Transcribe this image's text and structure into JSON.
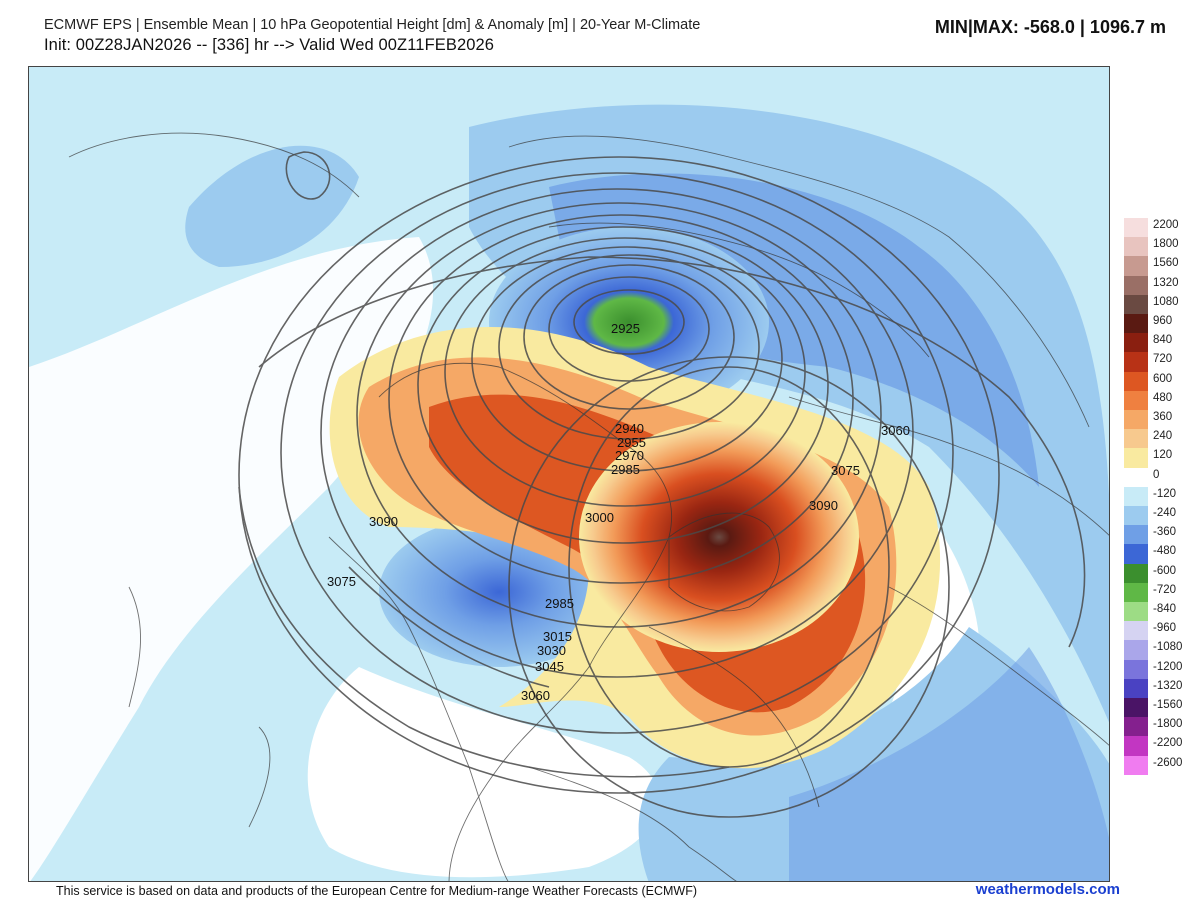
{
  "header": {
    "title": "ECMWF EPS | Ensemble Mean | 10 hPa Geopotential Height [dm] & Anomaly [m] | 20-Year M-Climate",
    "init": "Init: 00Z28JAN2026 -- [336] hr --> Valid Wed 00Z11FEB2026",
    "minmax": "MIN|MAX: -568.0 | 1096.7 m"
  },
  "map": {
    "contour_labels": [
      "2925",
      "2940",
      "2955",
      "2970",
      "2985",
      "3000",
      "3060",
      "3075",
      "3090",
      "3090",
      "3075",
      "2985",
      "3015",
      "3030",
      "3045",
      "3060"
    ]
  },
  "legend": {
    "entries": [
      {
        "label": "2200",
        "color": "#f6dede"
      },
      {
        "label": "1800",
        "color": "#e8c4bf"
      },
      {
        "label": "1560",
        "color": "#c79a90"
      },
      {
        "label": "1320",
        "color": "#9a6f66"
      },
      {
        "label": "1080",
        "color": "#6a4a42"
      },
      {
        "label": "960",
        "color": "#5a1a12"
      },
      {
        "label": "840",
        "color": "#8a1f10"
      },
      {
        "label": "720",
        "color": "#b83216"
      },
      {
        "label": "600",
        "color": "#dd5722"
      },
      {
        "label": "480",
        "color": "#ef8040"
      },
      {
        "label": "360",
        "color": "#f5a866"
      },
      {
        "label": "240",
        "color": "#f7c98e"
      },
      {
        "label": "120",
        "color": "#f9eaa0"
      },
      {
        "label": "0",
        "color": "#ffffff"
      },
      {
        "label": "-120",
        "color": "#c8ebf7"
      },
      {
        "label": "-240",
        "color": "#9ccbef"
      },
      {
        "label": "-360",
        "color": "#6f9fe6"
      },
      {
        "label": "-480",
        "color": "#3c67d6"
      },
      {
        "label": "-600",
        "color": "#3b8f2e"
      },
      {
        "label": "-720",
        "color": "#5fb846"
      },
      {
        "label": "-840",
        "color": "#9ddc85"
      },
      {
        "label": "-960",
        "color": "#d5d3f2"
      },
      {
        "label": "-1080",
        "color": "#aaa6ea"
      },
      {
        "label": "-1200",
        "color": "#7a74dc"
      },
      {
        "label": "-1320",
        "color": "#4a42c2"
      },
      {
        "label": "-1560",
        "color": "#4a1466"
      },
      {
        "label": "-1800",
        "color": "#84208e"
      },
      {
        "label": "-2200",
        "color": "#c236c2"
      },
      {
        "label": "-2600",
        "color": "#f07cf0"
      }
    ]
  },
  "footer": {
    "notice": "This service is based on data and products of the European Centre for Medium-range Weather Forecasts (ECMWF)",
    "brand": "weathermodels.com"
  }
}
